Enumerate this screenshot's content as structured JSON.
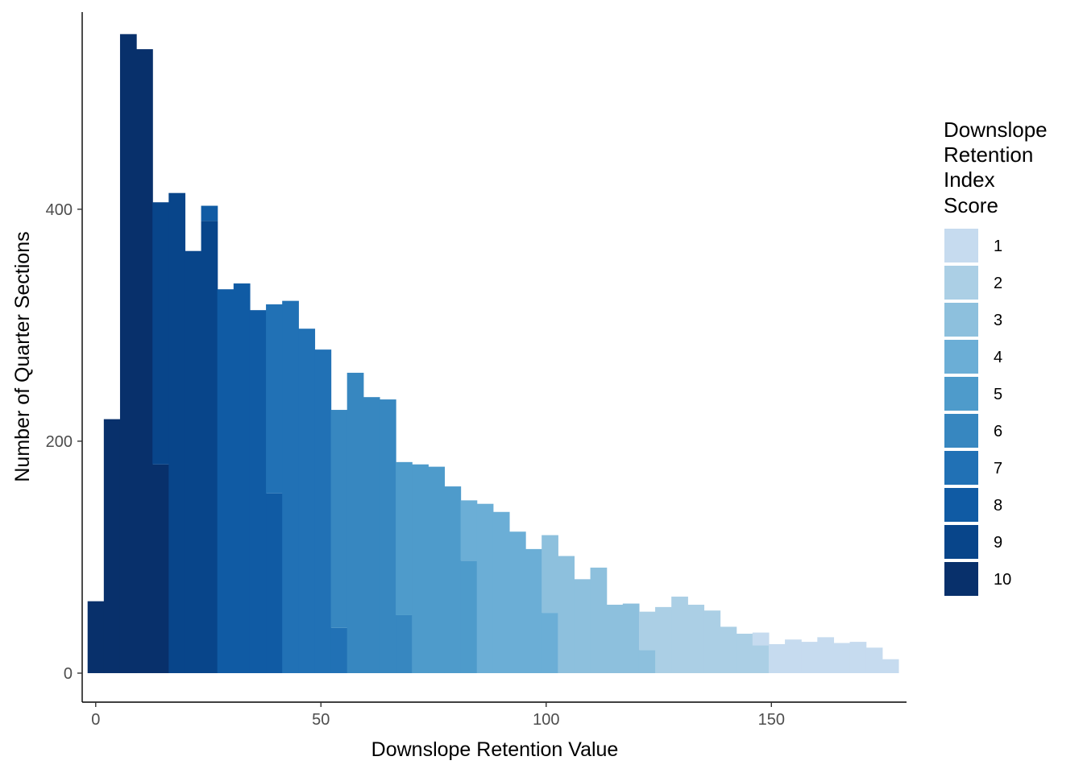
{
  "chart_data": {
    "type": "bar",
    "subtype": "histogram-stacked",
    "xlabel": "Downslope Retention Value",
    "ylabel": "Number of Quarter Sections",
    "xlim": [
      -3,
      180
    ],
    "ylim": [
      -25,
      570
    ],
    "bin_width": 3.6,
    "x_ticks": [
      0,
      50,
      100,
      150
    ],
    "y_ticks": [
      0,
      200,
      400
    ],
    "grid": false,
    "legend": {
      "title": [
        "Downslope",
        "Retention",
        "Index",
        "Score"
      ],
      "placement": "right",
      "entries": [
        "1",
        "2",
        "3",
        "4",
        "5",
        "6",
        "7",
        "8",
        "9",
        "10"
      ]
    },
    "score_colors": {
      "1": "#c6dbef",
      "2": "#abcfe5",
      "3": "#8dc0dd",
      "4": "#6baed6",
      "5": "#4e9bcb",
      "6": "#3787c0",
      "7": "#2171b5",
      "8": "#105ba4",
      "9": "#08458a",
      "10": "#08306b"
    },
    "bins": [
      {
        "x": 0,
        "segments": [
          {
            "score": 10,
            "count": 62
          }
        ]
      },
      {
        "x": 3.6,
        "segments": [
          {
            "score": 10,
            "count": 219
          }
        ]
      },
      {
        "x": 7.2,
        "segments": [
          {
            "score": 10,
            "count": 551
          }
        ]
      },
      {
        "x": 10.8,
        "segments": [
          {
            "score": 10,
            "count": 538
          }
        ]
      },
      {
        "x": 14.4,
        "segments": [
          {
            "score": 10,
            "count": 180
          },
          {
            "score": 9,
            "count": 226
          }
        ]
      },
      {
        "x": 18,
        "segments": [
          {
            "score": 9,
            "count": 414
          }
        ]
      },
      {
        "x": 21.6,
        "segments": [
          {
            "score": 9,
            "count": 364
          }
        ]
      },
      {
        "x": 25.2,
        "segments": [
          {
            "score": 9,
            "count": 390
          },
          {
            "score": 8,
            "count": 13
          }
        ]
      },
      {
        "x": 28.8,
        "segments": [
          {
            "score": 8,
            "count": 331
          }
        ]
      },
      {
        "x": 32.4,
        "segments": [
          {
            "score": 8,
            "count": 336
          }
        ]
      },
      {
        "x": 36,
        "segments": [
          {
            "score": 8,
            "count": 313
          }
        ]
      },
      {
        "x": 39.6,
        "segments": [
          {
            "score": 8,
            "count": 155
          },
          {
            "score": 7,
            "count": 163
          }
        ]
      },
      {
        "x": 43.2,
        "segments": [
          {
            "score": 7,
            "count": 321
          }
        ]
      },
      {
        "x": 46.8,
        "segments": [
          {
            "score": 7,
            "count": 297
          }
        ]
      },
      {
        "x": 50.4,
        "segments": [
          {
            "score": 7,
            "count": 279
          }
        ]
      },
      {
        "x": 54,
        "segments": [
          {
            "score": 7,
            "count": 39
          },
          {
            "score": 6,
            "count": 188
          }
        ]
      },
      {
        "x": 57.6,
        "segments": [
          {
            "score": 6,
            "count": 259
          }
        ]
      },
      {
        "x": 61.2,
        "segments": [
          {
            "score": 6,
            "count": 238
          }
        ]
      },
      {
        "x": 64.8,
        "segments": [
          {
            "score": 6,
            "count": 236
          }
        ]
      },
      {
        "x": 68.4,
        "segments": [
          {
            "score": 6,
            "count": 50
          },
          {
            "score": 5,
            "count": 132
          }
        ]
      },
      {
        "x": 72,
        "segments": [
          {
            "score": 5,
            "count": 180
          }
        ]
      },
      {
        "x": 75.6,
        "segments": [
          {
            "score": 5,
            "count": 178
          }
        ]
      },
      {
        "x": 79.2,
        "segments": [
          {
            "score": 5,
            "count": 161
          }
        ]
      },
      {
        "x": 82.8,
        "segments": [
          {
            "score": 5,
            "count": 97
          },
          {
            "score": 4,
            "count": 52
          }
        ]
      },
      {
        "x": 86.4,
        "segments": [
          {
            "score": 4,
            "count": 146
          }
        ]
      },
      {
        "x": 90,
        "segments": [
          {
            "score": 4,
            "count": 139
          }
        ]
      },
      {
        "x": 93.6,
        "segments": [
          {
            "score": 4,
            "count": 122
          }
        ]
      },
      {
        "x": 97.2,
        "segments": [
          {
            "score": 4,
            "count": 107
          }
        ]
      },
      {
        "x": 100.8,
        "segments": [
          {
            "score": 4,
            "count": 52
          },
          {
            "score": 3,
            "count": 67
          }
        ]
      },
      {
        "x": 104.4,
        "segments": [
          {
            "score": 3,
            "count": 101
          }
        ]
      },
      {
        "x": 108,
        "segments": [
          {
            "score": 3,
            "count": 81
          }
        ]
      },
      {
        "x": 111.6,
        "segments": [
          {
            "score": 3,
            "count": 91
          }
        ]
      },
      {
        "x": 115.2,
        "segments": [
          {
            "score": 3,
            "count": 59
          }
        ]
      },
      {
        "x": 118.8,
        "segments": [
          {
            "score": 3,
            "count": 60
          }
        ]
      },
      {
        "x": 122.4,
        "segments": [
          {
            "score": 3,
            "count": 20
          },
          {
            "score": 2,
            "count": 33
          }
        ]
      },
      {
        "x": 126,
        "segments": [
          {
            "score": 2,
            "count": 57
          }
        ]
      },
      {
        "x": 129.6,
        "segments": [
          {
            "score": 2,
            "count": 66
          }
        ]
      },
      {
        "x": 133.2,
        "segments": [
          {
            "score": 2,
            "count": 59
          }
        ]
      },
      {
        "x": 136.8,
        "segments": [
          {
            "score": 2,
            "count": 54
          }
        ]
      },
      {
        "x": 140.4,
        "segments": [
          {
            "score": 2,
            "count": 40
          }
        ]
      },
      {
        "x": 144,
        "segments": [
          {
            "score": 2,
            "count": 34
          }
        ]
      },
      {
        "x": 147.6,
        "segments": [
          {
            "score": 2,
            "count": 24
          },
          {
            "score": 1,
            "count": 11
          }
        ]
      },
      {
        "x": 151.2,
        "segments": [
          {
            "score": 1,
            "count": 25
          }
        ]
      },
      {
        "x": 154.8,
        "segments": [
          {
            "score": 1,
            "count": 29
          }
        ]
      },
      {
        "x": 158.4,
        "segments": [
          {
            "score": 1,
            "count": 27
          }
        ]
      },
      {
        "x": 162,
        "segments": [
          {
            "score": 1,
            "count": 31
          }
        ]
      },
      {
        "x": 165.6,
        "segments": [
          {
            "score": 1,
            "count": 26
          }
        ]
      },
      {
        "x": 169.2,
        "segments": [
          {
            "score": 1,
            "count": 27
          }
        ]
      },
      {
        "x": 172.8,
        "segments": [
          {
            "score": 1,
            "count": 22
          }
        ]
      },
      {
        "x": 176.4,
        "segments": [
          {
            "score": 1,
            "count": 12
          }
        ]
      }
    ]
  }
}
